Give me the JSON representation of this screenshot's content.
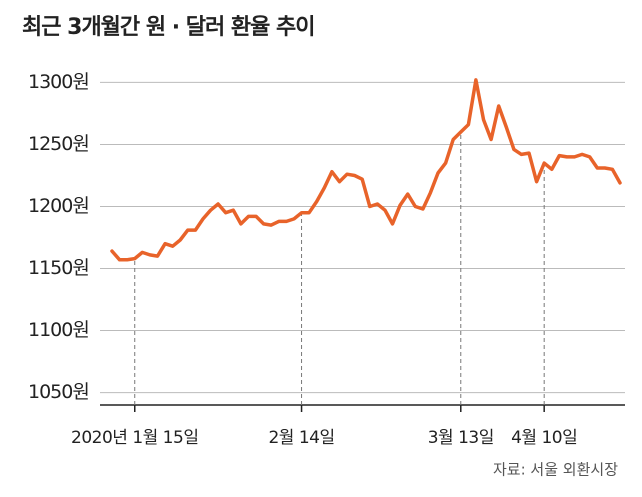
{
  "chart_data": {
    "type": "line",
    "title": "최근 3개월간 원 · 달러 환율 추이",
    "source": "자료: 서울 외환시장",
    "categories": [
      null,
      null,
      null,
      "2020년 1월 15일",
      null,
      null,
      null,
      null,
      null,
      null,
      null,
      null,
      null,
      null,
      null,
      null,
      null,
      null,
      null,
      null,
      null,
      null,
      null,
      null,
      null,
      "2월 14일",
      null,
      null,
      null,
      null,
      null,
      null,
      null,
      null,
      null,
      null,
      null,
      null,
      null,
      null,
      null,
      null,
      null,
      null,
      null,
      null,
      "3월 13일",
      null,
      null,
      null,
      null,
      null,
      null,
      null,
      null,
      null,
      null,
      "4월 10일",
      null,
      null,
      null,
      null,
      null,
      null,
      null,
      null,
      null,
      null
    ],
    "series": [
      {
        "name": "원·달러 환율",
        "color": "#e8632a",
        "values": [
          1164,
          1157,
          1157,
          1158,
          1163,
          1161,
          1160,
          1170,
          1168,
          1173,
          1181,
          1181,
          1190,
          1197,
          1202,
          1195,
          1197,
          1186,
          1192,
          1192,
          1186,
          1185,
          1188,
          1188,
          1190,
          1195,
          1195,
          1204,
          1215,
          1228,
          1220,
          1226,
          1225,
          1222,
          1200,
          1202,
          1197,
          1186,
          1201,
          1210,
          1200,
          1198,
          1211,
          1227,
          1235,
          1254,
          1260,
          1266,
          1302,
          1270,
          1254,
          1281,
          1264,
          1246,
          1242,
          1243,
          1220,
          1235,
          1230,
          1241,
          1240,
          1240,
          1242,
          1240,
          1231,
          1231,
          1230,
          1219
        ]
      }
    ],
    "ylim": [
      1040,
      1310
    ],
    "yticks": [
      {
        "value": 1050,
        "label": "1050원"
      },
      {
        "value": 1100,
        "label": "1100원"
      },
      {
        "value": 1150,
        "label": "1150원"
      },
      {
        "value": 1200,
        "label": "1200원"
      },
      {
        "value": 1250,
        "label": "1250원"
      },
      {
        "value": 1300,
        "label": "1300원"
      }
    ],
    "grid": true
  }
}
